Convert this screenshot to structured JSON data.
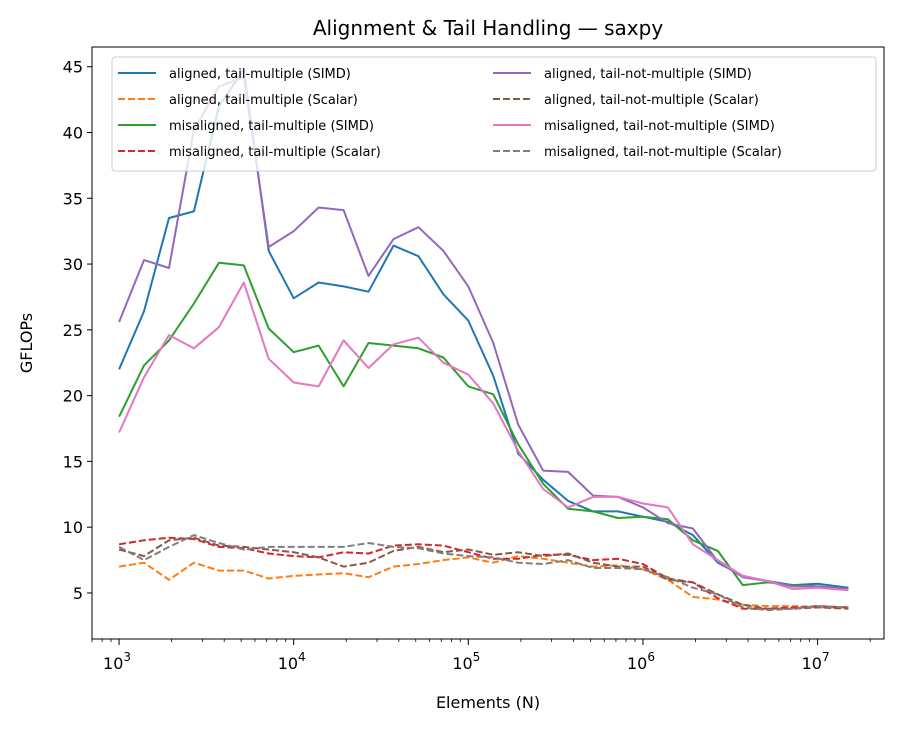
{
  "chart_data": {
    "type": "line",
    "title": "Alignment & Tail Handling — saxpy",
    "xlabel": "Elements (N)",
    "ylabel": "GFLOPs",
    "xscale": "log",
    "xlim": [
      700,
      24000000
    ],
    "ylim": [
      1.5,
      46.5
    ],
    "yticks": [
      5,
      10,
      15,
      20,
      25,
      30,
      35,
      40,
      45
    ],
    "xticks": [
      {
        "value": 1000,
        "base": "10",
        "exp": "3"
      },
      {
        "value": 10000,
        "base": "10",
        "exp": "4"
      },
      {
        "value": 100000,
        "base": "10",
        "exp": "5"
      },
      {
        "value": 1000000,
        "base": "10",
        "exp": "6"
      },
      {
        "value": 10000000,
        "base": "10",
        "exp": "7"
      }
    ],
    "legend_position": "top",
    "x": [
      1000,
      1389,
      1931,
      2683,
      3728,
      5179,
      7197,
      10000,
      13895,
      19307,
      26827,
      37276,
      51795,
      71969,
      100000,
      138950,
      193070,
      268270,
      372760,
      517950,
      719690,
      1000000,
      1389500,
      1930700,
      2682700,
      3727600,
      5179500,
      7196900,
      10000000,
      15000000
    ],
    "series": [
      {
        "name": "aligned, tail-multiple (SIMD)",
        "color": "#1f77b4",
        "dash": "solid",
        "values": [
          22.0,
          26.4,
          33.5,
          34.0,
          42.0,
          44.8,
          31.0,
          27.4,
          28.6,
          28.3,
          27.9,
          31.4,
          30.6,
          27.7,
          25.7,
          21.5,
          15.6,
          13.6,
          12.0,
          11.2,
          11.2,
          10.8,
          10.4,
          9.4,
          7.3,
          6.3,
          5.9,
          5.6,
          5.7,
          5.4
        ]
      },
      {
        "name": "aligned, tail-multiple (Scalar)",
        "color": "#ff7f0e",
        "dash": "dashed",
        "values": [
          7.0,
          7.3,
          6.0,
          7.3,
          6.7,
          6.7,
          6.1,
          6.3,
          6.4,
          6.5,
          6.2,
          7.0,
          7.2,
          7.5,
          7.7,
          7.3,
          7.8,
          7.6,
          7.3,
          7.0,
          7.1,
          6.8,
          6.0,
          4.7,
          4.5,
          4.1,
          4.0,
          4.0,
          3.9,
          3.9
        ]
      },
      {
        "name": "misaligned, tail-multiple (SIMD)",
        "color": "#2ca02c",
        "dash": "solid",
        "values": [
          18.4,
          22.3,
          24.2,
          27.0,
          30.1,
          29.9,
          25.1,
          23.3,
          23.8,
          20.7,
          24.0,
          23.8,
          23.6,
          22.9,
          20.7,
          20.1,
          16.3,
          13.3,
          11.4,
          11.2,
          10.7,
          10.8,
          10.6,
          9.0,
          8.2,
          5.6,
          5.8,
          5.6,
          5.5,
          5.3
        ]
      },
      {
        "name": "misaligned, tail-multiple (Scalar)",
        "color": "#d62728",
        "dash": "dashed",
        "values": [
          8.7,
          9.0,
          9.2,
          9.1,
          8.5,
          8.4,
          8.0,
          7.8,
          7.7,
          8.1,
          8.0,
          8.6,
          8.7,
          8.6,
          8.1,
          7.6,
          7.6,
          7.9,
          7.9,
          7.5,
          7.6,
          7.2,
          6.1,
          5.8,
          4.6,
          3.8,
          3.8,
          3.9,
          4.0,
          3.9
        ]
      },
      {
        "name": "aligned, tail-not-multiple (SIMD)",
        "color": "#9467bd",
        "dash": "solid",
        "values": [
          25.6,
          30.3,
          29.7,
          40.2,
          43.5,
          44.2,
          31.3,
          32.5,
          34.3,
          34.1,
          29.1,
          31.9,
          32.8,
          31.0,
          28.3,
          24.0,
          17.8,
          14.3,
          14.2,
          12.4,
          12.3,
          11.5,
          10.3,
          9.9,
          7.4,
          6.2,
          5.9,
          5.5,
          5.5,
          5.3
        ]
      },
      {
        "name": "aligned, tail-not-multiple (Scalar)",
        "color": "#8c564b",
        "dash": "dashed",
        "values": [
          8.3,
          7.8,
          9.0,
          9.2,
          8.6,
          8.5,
          8.3,
          8.1,
          7.7,
          7.0,
          7.3,
          8.2,
          8.5,
          8.1,
          8.3,
          7.9,
          8.1,
          7.8,
          8.0,
          7.3,
          7.0,
          7.0,
          6.0,
          5.8,
          4.9,
          4.1,
          3.8,
          3.8,
          3.9,
          3.8
        ]
      },
      {
        "name": "misaligned, tail-not-multiple (SIMD)",
        "color": "#e377c2",
        "dash": "solid",
        "values": [
          17.2,
          21.4,
          24.6,
          23.6,
          25.2,
          28.6,
          22.8,
          21.0,
          20.7,
          24.2,
          22.1,
          23.9,
          24.4,
          22.5,
          21.6,
          19.4,
          15.8,
          12.9,
          11.5,
          12.3,
          12.3,
          11.8,
          11.5,
          8.7,
          7.5,
          6.3,
          5.9,
          5.3,
          5.4,
          5.2
        ]
      },
      {
        "name": "misaligned, tail-not-multiple (Scalar)",
        "color": "#7f7f7f",
        "dash": "dashed",
        "values": [
          8.5,
          7.5,
          8.5,
          9.4,
          8.8,
          8.3,
          8.5,
          8.5,
          8.5,
          8.5,
          8.8,
          8.5,
          8.4,
          8.0,
          7.8,
          7.7,
          7.3,
          7.2,
          7.5,
          6.9,
          6.9,
          6.8,
          6.2,
          5.4,
          4.9,
          3.9,
          3.7,
          3.8,
          4.0,
          3.9
        ]
      }
    ]
  }
}
